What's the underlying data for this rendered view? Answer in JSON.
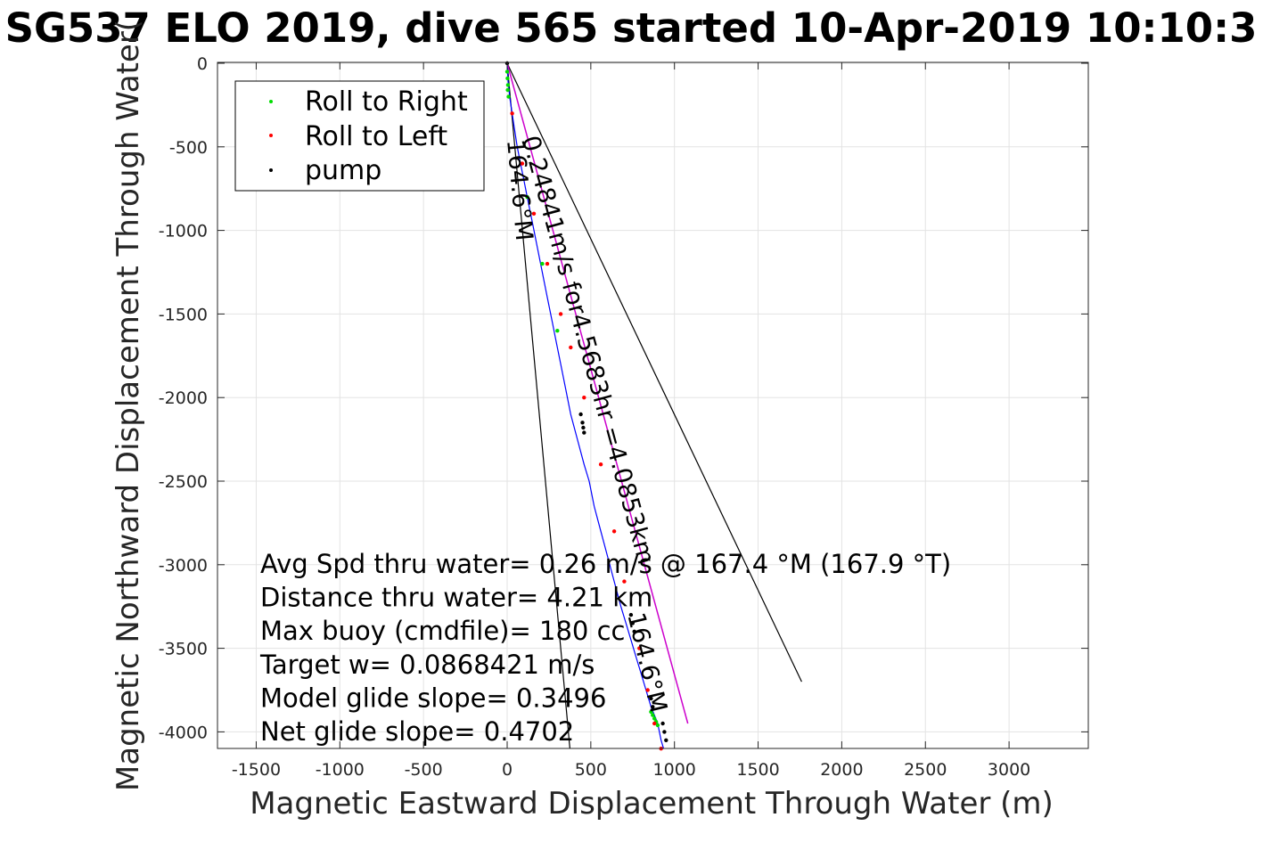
{
  "chart_data": {
    "type": "line",
    "title": "SG537 ELO 2019, dive 565 started 10-Apr-2019 10:10:3",
    "xlabel": "Magnetic Eastward Displacement Through Water (m)",
    "ylabel": "Magnetic Northward Displacement Through Water(",
    "xlim": [
      -1750,
      3450
    ],
    "ylim": [
      -4100,
      0
    ],
    "xticks": [
      -1500,
      -1000,
      -500,
      0,
      500,
      1000,
      1500,
      2000,
      2500,
      3000
    ],
    "yticks": [
      0,
      -500,
      -1000,
      -1500,
      -2000,
      -2500,
      -3000,
      -3500,
      -4000
    ],
    "grid": true,
    "legend": {
      "placement": "top-left",
      "entries": [
        {
          "name": "Roll to Right",
          "color": "#00dd00"
        },
        {
          "name": "Roll to Left",
          "color": "#ff0000"
        },
        {
          "name": "pump",
          "color": "#000000"
        }
      ]
    },
    "track": {
      "color": "#0000ff",
      "x": [
        0,
        5,
        15,
        30,
        45,
        60,
        80,
        100,
        120,
        150,
        180,
        210,
        240,
        270,
        290,
        320,
        350,
        380,
        420,
        460,
        490,
        520,
        560,
        600,
        640,
        680,
        710,
        740,
        770,
        800,
        830,
        860,
        880,
        900,
        920,
        935
      ],
      "y": [
        0,
        -100,
        -200,
        -300,
        -400,
        -500,
        -600,
        -700,
        -800,
        -950,
        -1100,
        -1250,
        -1400,
        -1550,
        -1650,
        -1800,
        -1950,
        -2100,
        -2250,
        -2400,
        -2500,
        -2650,
        -2800,
        -2950,
        -3100,
        -3250,
        -3350,
        -3450,
        -3550,
        -3650,
        -3750,
        -3850,
        -3900,
        -3950,
        -4050,
        -4100
      ]
    },
    "vector_line": {
      "color": "#cc00cc",
      "x": [
        0,
        1080
      ],
      "y": [
        0,
        -3950
      ]
    },
    "cone_lines": [
      {
        "color": "#000000",
        "x": [
          0,
          375
        ],
        "y": [
          0,
          -4100
        ]
      },
      {
        "color": "#000000",
        "x": [
          0,
          1760
        ],
        "y": [
          0,
          -3700
        ]
      }
    ],
    "roll_right_points": {
      "x": [
        0,
        2,
        5,
        3,
        8,
        120,
        210,
        300,
        860,
        870,
        880,
        890,
        900
      ],
      "y": [
        -50,
        -90,
        -130,
        -160,
        -200,
        -800,
        -1200,
        -1600,
        -3880,
        -3900,
        -3920,
        -3940,
        -3960
      ]
    },
    "roll_left_points": {
      "x": [
        30,
        90,
        160,
        240,
        320,
        380,
        460,
        560,
        640,
        700,
        790,
        840,
        880,
        920
      ],
      "y": [
        -300,
        -600,
        -900,
        -1200,
        -1500,
        -1700,
        -2000,
        -2400,
        -2800,
        -3100,
        -3500,
        -3750,
        -3950,
        -4100
      ]
    },
    "pump_points": {
      "x": [
        0,
        440,
        450,
        455,
        460,
        740,
        750,
        760,
        860,
        870,
        930,
        940,
        950
      ],
      "y": [
        0,
        -2100,
        -2150,
        -2180,
        -2210,
        -3300,
        -3350,
        -3400,
        -3800,
        -3850,
        -3950,
        -4000,
        -4050
      ]
    },
    "annotations": [
      {
        "text": "0.24841m/s for4.5683hr =4.0853km",
        "anchor_x": 90,
        "anchor_y": -450
      },
      {
        "text": "164.6°M",
        "anchor_x": 0,
        "anchor_y": -460
      },
      {
        "text": "164.6°M",
        "anchor_x": 720,
        "anchor_y": -3300
      }
    ]
  },
  "info_lines": [
    "Avg Spd thru water=  0.26 m/s @ 167.4 °M (167.9 °T)",
    "Distance thru water=  4.21 km",
    "Max buoy (cmdfile)= 180 cc",
    "Target w= 0.0868421 m/s",
    "Model glide slope= 0.3496",
    "Net glide slope= 0.4702"
  ]
}
